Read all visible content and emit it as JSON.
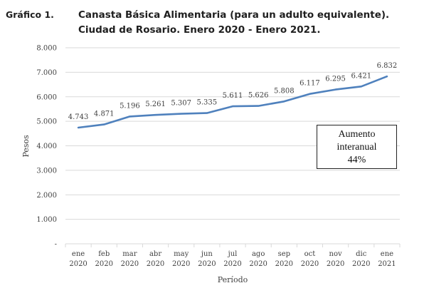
{
  "figure_label": "Gráfico 1.",
  "note": {
    "line1": "Aumento",
    "line2": "interanual",
    "line3": "44%"
  },
  "chart_data": {
    "type": "line",
    "title": "Canasta Básica Alimentaria (para un adulto equivalente). Ciudad de Rosario. Enero 2020 - Enero 2021.",
    "xlabel": "Período",
    "ylabel": "Pesos",
    "ylim": [
      0,
      8000
    ],
    "yticks": [
      "-",
      "1.000",
      "2.000",
      "3.000",
      "4.000",
      "5.000",
      "6.000",
      "7.000",
      "8.000"
    ],
    "grid": true,
    "line_color": "#4f81bd",
    "categories": [
      [
        "ene",
        "2020"
      ],
      [
        "feb",
        "2020"
      ],
      [
        "mar",
        "2020"
      ],
      [
        "abr",
        "2020"
      ],
      [
        "may",
        "2020"
      ],
      [
        "jun",
        "2020"
      ],
      [
        "jul",
        "2020"
      ],
      [
        "ago",
        "2020"
      ],
      [
        "sep",
        "2020"
      ],
      [
        "oct",
        "2020"
      ],
      [
        "nov",
        "2020"
      ],
      [
        "dic",
        "2020"
      ],
      [
        "ene",
        "2021"
      ]
    ],
    "values": [
      4743,
      4871,
      5196,
      5261,
      5307,
      5335,
      5611,
      5626,
      5808,
      6117,
      6295,
      6421,
      6832
    ],
    "value_labels": [
      "4.743",
      "4.871",
      "5.196",
      "5.261",
      "5.307",
      "5.335",
      "5.611",
      "5.626",
      "5.808",
      "6.117",
      "6.295",
      "6.421",
      "6.832"
    ]
  }
}
